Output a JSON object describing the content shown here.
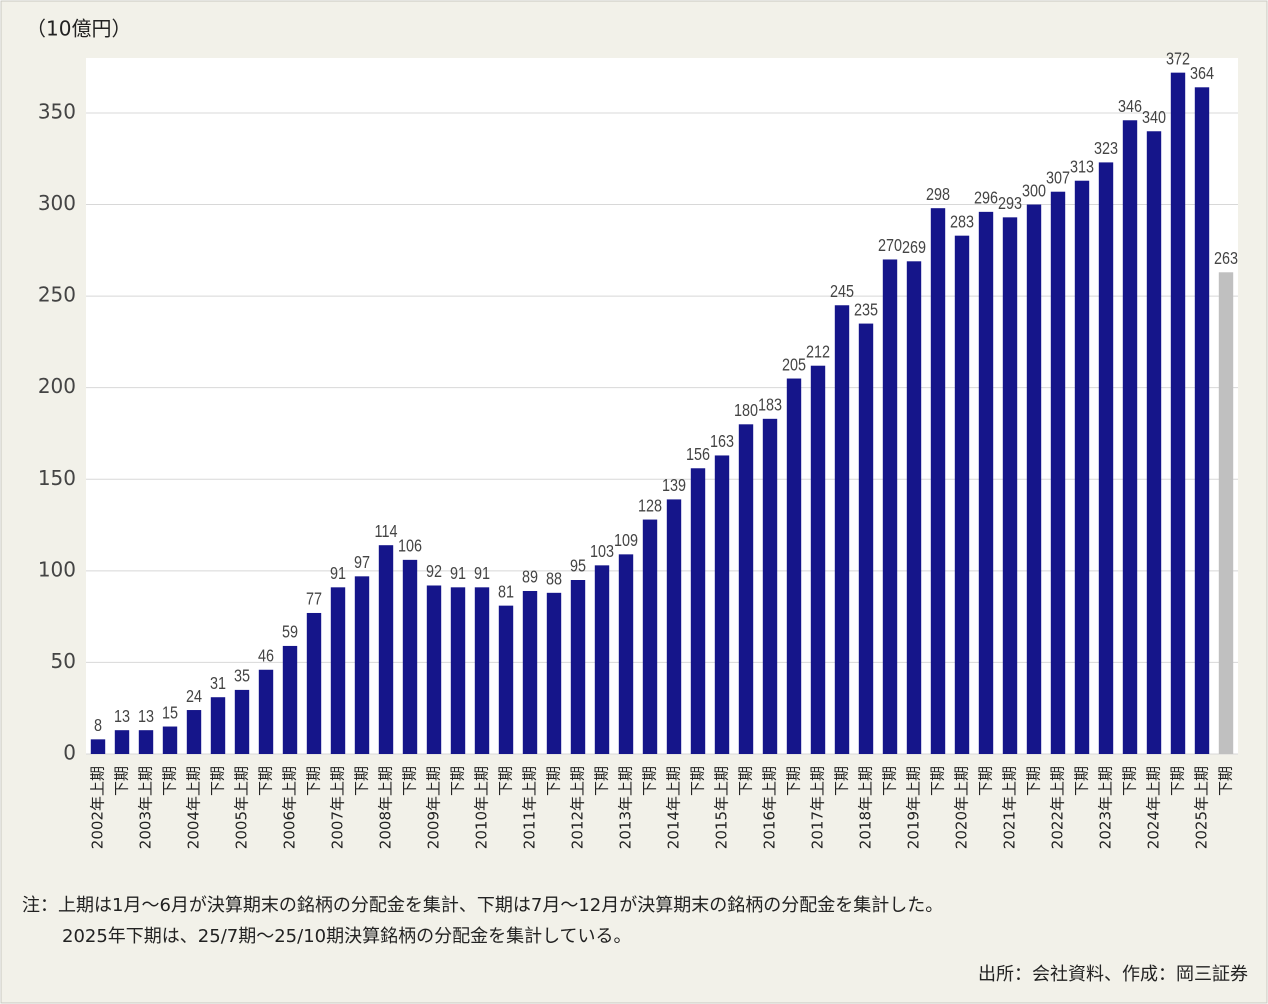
{
  "chart_data": {
    "type": "bar",
    "unit_label": "（10億円）",
    "categories": [
      "2002年上期",
      "下期",
      "2003年上期",
      "下期",
      "2004年上期",
      "下期",
      "2005年上期",
      "下期",
      "2006年上期",
      "下期",
      "2007年上期",
      "下期",
      "2008年上期",
      "下期",
      "2009年上期",
      "下期",
      "2010年上期",
      "下期",
      "2011年上期",
      "下期",
      "2012年上期",
      "下期",
      "2013年上期",
      "下期",
      "2014年上期",
      "下期",
      "2015年上期",
      "下期",
      "2016年上期",
      "下期",
      "2017年上期",
      "下期",
      "2018年上期",
      "下期",
      "2019年上期",
      "下期",
      "2020年上期",
      "下期",
      "2021年上期",
      "下期",
      "2022年上期",
      "下期",
      "2023年上期",
      "下期",
      "2024年上期",
      "下期",
      "2025年上期",
      "下期"
    ],
    "values": [
      8,
      13,
      13,
      15,
      24,
      31,
      35,
      46,
      59,
      77,
      91,
      97,
      114,
      106,
      92,
      91,
      91,
      81,
      89,
      88,
      95,
      103,
      109,
      128,
      139,
      156,
      163,
      180,
      183,
      205,
      212,
      245,
      235,
      270,
      269,
      298,
      283,
      296,
      293,
      300,
      307,
      313,
      323,
      346,
      340,
      372,
      364,
      263
    ],
    "colors": [
      "#15158a",
      "#15158a",
      "#15158a",
      "#15158a",
      "#15158a",
      "#15158a",
      "#15158a",
      "#15158a",
      "#15158a",
      "#15158a",
      "#15158a",
      "#15158a",
      "#15158a",
      "#15158a",
      "#15158a",
      "#15158a",
      "#15158a",
      "#15158a",
      "#15158a",
      "#15158a",
      "#15158a",
      "#15158a",
      "#15158a",
      "#15158a",
      "#15158a",
      "#15158a",
      "#15158a",
      "#15158a",
      "#15158a",
      "#15158a",
      "#15158a",
      "#15158a",
      "#15158a",
      "#15158a",
      "#15158a",
      "#15158a",
      "#15158a",
      "#15158a",
      "#15158a",
      "#15158a",
      "#15158a",
      "#15158a",
      "#15158a",
      "#15158a",
      "#15158a",
      "#15158a",
      "#15158a",
      "#c0c0c0"
    ],
    "ylim": [
      0,
      380
    ],
    "yticks": [
      0,
      50,
      100,
      150,
      200,
      250,
      300,
      350
    ],
    "grid": true,
    "notes": [
      "注：上期は1月～6月が決算期末の銘柄の分配金を集計、下期は7月～12月が決算期末の銘柄の分配金を集計した。",
      "2025年下期は、25/7期～25/10期決算銘柄の分配金を集計している。"
    ],
    "source": "出所：会社資料、作成：岡三証券"
  }
}
